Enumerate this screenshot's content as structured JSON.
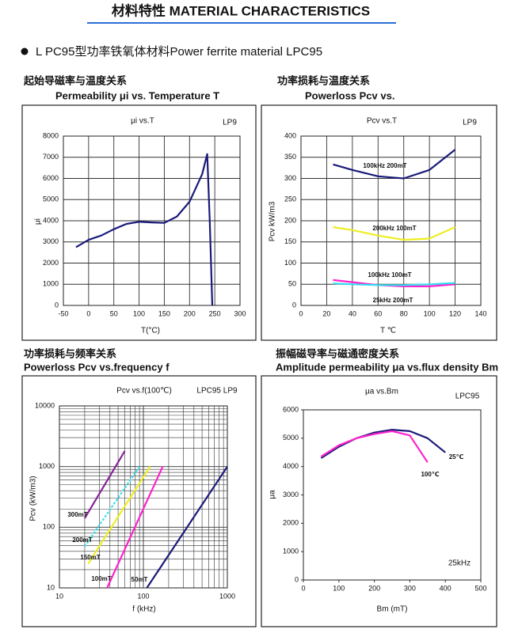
{
  "heading": "材料特性  MATERIAL CHARACTERISTICS",
  "intro": "L PC95型功率铁氧体材料Power ferrite material LPC95",
  "chart_data": [
    {
      "type": "line",
      "title_zh": "起始导磁率与温度关系",
      "title": "Permeability μi vs. Temperature T",
      "subtitle": "μi vs.T",
      "annotations": [
        "LP9"
      ],
      "x_label": "T(°C)",
      "y_label": "μi",
      "xlim": [
        -50,
        300
      ],
      "xticks": [
        -50,
        0,
        50,
        100,
        150,
        200,
        250,
        300
      ],
      "ylim": [
        0,
        8000
      ],
      "yticks": [
        0,
        1000,
        2000,
        3000,
        4000,
        5000,
        6000,
        7000,
        8000
      ],
      "grid": true,
      "x": [
        -25,
        0,
        25,
        50,
        75,
        100,
        125,
        150,
        175,
        200,
        225,
        235,
        240,
        245
      ],
      "series": [
        {
          "color": "#1a1a7a",
          "values": [
            2750,
            3100,
            3300,
            3600,
            3850,
            3950,
            3920,
            3900,
            4200,
            4900,
            6200,
            7150,
            4000,
            0
          ]
        }
      ]
    },
    {
      "type": "line",
      "title_zh": "功率损耗与温度关系",
      "title": "Powerloss Pcv vs.",
      "subtitle": "Pcv vs.T",
      "annotations": [
        "LP9"
      ],
      "x_label": "T ℃",
      "y_label": "Pcv kW/m3",
      "xlim": [
        0,
        140
      ],
      "xticks": [
        0,
        20,
        40,
        60,
        80,
        100,
        120,
        140
      ],
      "ylim": [
        0,
        400
      ],
      "yticks": [
        0,
        50,
        100,
        150,
        200,
        250,
        300,
        350,
        400
      ],
      "grid": true,
      "x": [
        25,
        40,
        60,
        80,
        100,
        120
      ],
      "series": [
        {
          "name": "100kHz 200mT",
          "color": "#1a1a7a",
          "values": [
            333,
            320,
            305,
            300,
            320,
            368
          ]
        },
        {
          "name": "200kHz 100mT",
          "color": "#eeee22",
          "values": [
            185,
            178,
            165,
            155,
            158,
            185
          ]
        },
        {
          "name": "100kHz 100mT",
          "color": "#ff22cc",
          "values": [
            60,
            55,
            48,
            45,
            45,
            50
          ]
        },
        {
          "name": "25kHz 200mT",
          "color": "#33e0f0",
          "values": [
            52,
            50,
            48,
            48,
            50,
            53
          ]
        }
      ]
    },
    {
      "type": "line",
      "title_zh": "功率损耗与频率关系",
      "title": "Powerloss Pcv vs.frequency f",
      "subtitle": "Pcv vs.f(100℃)",
      "annotations": [
        "LPC95 LP9"
      ],
      "x_label": "f (kHz)",
      "y_label": "Pcv (kW/m3)",
      "log_x": true,
      "log_y": true,
      "xlim": [
        10,
        1000
      ],
      "xticks": [
        10,
        100,
        1000
      ],
      "xminor": [
        20,
        30,
        40,
        50,
        60,
        70,
        80,
        90,
        200,
        300,
        400,
        500,
        600,
        700,
        800,
        900
      ],
      "ylim": [
        10,
        10000
      ],
      "yticks": [
        10,
        100,
        1000,
        10000
      ],
      "yminor": [
        20,
        30,
        40,
        50,
        60,
        70,
        80,
        90,
        200,
        300,
        400,
        500,
        600,
        700,
        800,
        900,
        2000,
        3000,
        4000,
        5000,
        6000,
        7000,
        8000,
        9000
      ],
      "grid": true,
      "series": [
        {
          "name": "300mT",
          "color": "#882299",
          "x": [
            20,
            60
          ],
          "values": [
            140,
            1800
          ]
        },
        {
          "name": "200mT",
          "color": "#33e0f0",
          "dash": true,
          "x": [
            20,
            90
          ],
          "values": [
            48,
            1000
          ]
        },
        {
          "name": "150mT",
          "color": "#eeee22",
          "x": [
            22,
            120
          ],
          "values": [
            25,
            1000
          ]
        },
        {
          "name": "100mT",
          "color": "#ff22cc",
          "x": [
            37,
            170
          ],
          "values": [
            10,
            1000
          ]
        },
        {
          "name": "50mT",
          "color": "#1a1a7a",
          "x": [
            110,
            1000
          ],
          "values": [
            10,
            1000
          ]
        }
      ]
    },
    {
      "type": "line",
      "title_zh": "振幅磁导率与磁通密度关系",
      "title": "Amplitude permeability μa vs.flux density Bm",
      "subtitle": "μa vs.Bm",
      "annotations": [
        "LPC95",
        "25kHz"
      ],
      "x_label": "Bm (mT)",
      "y_label": "μa",
      "xlim": [
        0,
        500
      ],
      "xticks": [
        0,
        100,
        200,
        300,
        400,
        500
      ],
      "ylim": [
        0,
        6000
      ],
      "yticks": [
        0,
        1000,
        2000,
        3000,
        4000,
        5000,
        6000
      ],
      "grid": false,
      "series": [
        {
          "name": "25℃",
          "color": "#1a1a7a",
          "x": [
            50,
            100,
            150,
            200,
            250,
            300,
            350,
            400
          ],
          "values": [
            4300,
            4700,
            5000,
            5200,
            5300,
            5250,
            5000,
            4500
          ]
        },
        {
          "name": "100℃",
          "color": "#ff22cc",
          "x": [
            50,
            100,
            150,
            200,
            250,
            300,
            350
          ],
          "values": [
            4350,
            4750,
            5000,
            5150,
            5250,
            5100,
            4150
          ]
        }
      ]
    }
  ]
}
